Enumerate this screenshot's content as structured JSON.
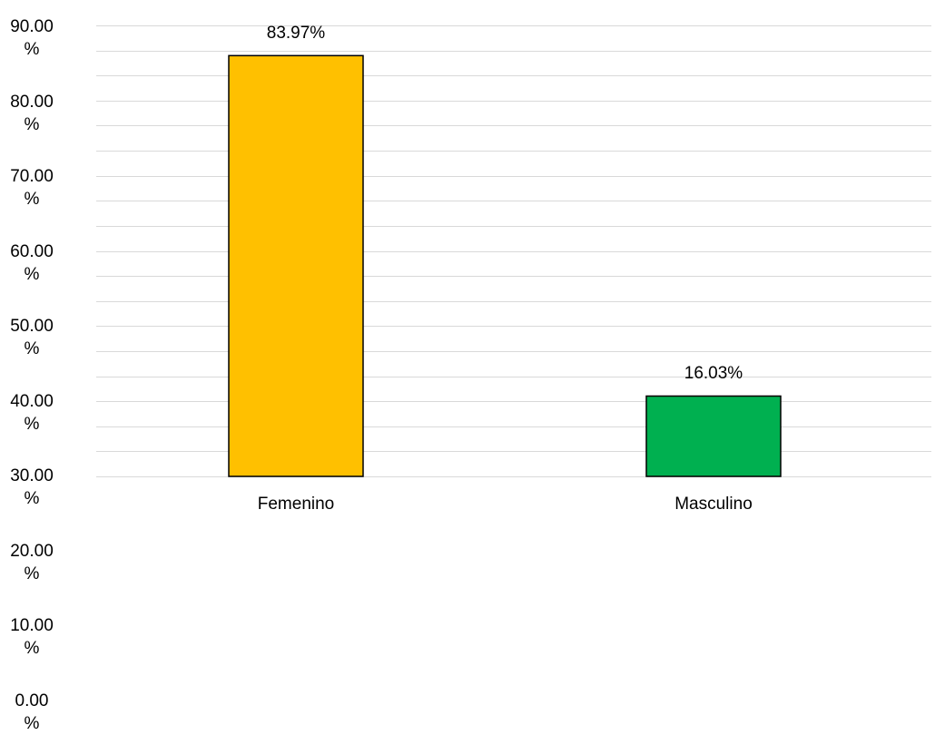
{
  "chart_data": {
    "type": "bar",
    "categories": [
      "Femenino",
      "Masculino"
    ],
    "values": [
      83.97,
      16.03
    ],
    "data_labels": [
      "83.97%",
      "16.03%"
    ],
    "colors": [
      "#FFC000",
      "#00B050"
    ],
    "y_ticks": [
      "90.00\n%",
      "80.00\n%",
      "70.00\n%",
      "60.00\n%",
      "50.00\n%",
      "40.00\n%",
      "30.00\n%",
      "20.00\n%",
      "10.00\n%",
      "0.00\n%"
    ],
    "ylim": [
      0,
      90
    ],
    "grid": true,
    "gridline_color": "#D9D9D9",
    "title": "",
    "xlabel": "",
    "ylabel": ""
  }
}
